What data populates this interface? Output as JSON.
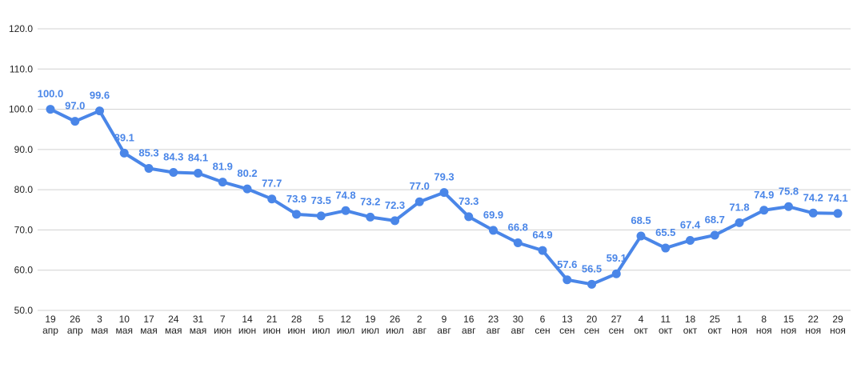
{
  "chart_data": {
    "type": "line",
    "title": "",
    "xlabel": "",
    "ylabel": "",
    "ylim": [
      50,
      120
    ],
    "yticks": [
      "50.0",
      "60.0",
      "70.0",
      "80.0",
      "90.0",
      "100.0",
      "110.0",
      "120.0"
    ],
    "grid": true,
    "legend": "none",
    "color": "#4a86e8",
    "categories": [
      [
        "19",
        "апр"
      ],
      [
        "26",
        "апр"
      ],
      [
        "3",
        "мая"
      ],
      [
        "10",
        "мая"
      ],
      [
        "17",
        "мая"
      ],
      [
        "24",
        "мая"
      ],
      [
        "31",
        "мая"
      ],
      [
        "7",
        "июн"
      ],
      [
        "14",
        "июн"
      ],
      [
        "21",
        "июн"
      ],
      [
        "28",
        "июн"
      ],
      [
        "5",
        "июл"
      ],
      [
        "12",
        "июл"
      ],
      [
        "19",
        "июл"
      ],
      [
        "26",
        "июл"
      ],
      [
        "2",
        "авг"
      ],
      [
        "9",
        "авг"
      ],
      [
        "16",
        "авг"
      ],
      [
        "23",
        "авг"
      ],
      [
        "30",
        "авг"
      ],
      [
        "6",
        "сен"
      ],
      [
        "13",
        "сен"
      ],
      [
        "20",
        "сен"
      ],
      [
        "27",
        "сен"
      ],
      [
        "4",
        "окт"
      ],
      [
        "11",
        "окт"
      ],
      [
        "18",
        "окт"
      ],
      [
        "25",
        "окт"
      ],
      [
        "1",
        "ноя"
      ],
      [
        "8",
        "ноя"
      ],
      [
        "15",
        "ноя"
      ],
      [
        "22",
        "ноя"
      ],
      [
        "29",
        "ноя"
      ]
    ],
    "values": [
      100.0,
      97.0,
      99.6,
      89.1,
      85.3,
      84.3,
      84.1,
      81.9,
      80.2,
      77.7,
      73.9,
      73.5,
      74.8,
      73.2,
      72.3,
      77.0,
      79.3,
      73.3,
      69.9,
      66.8,
      64.9,
      57.6,
      56.5,
      59.1,
      68.5,
      65.5,
      67.4,
      68.7,
      71.8,
      74.9,
      75.8,
      74.2,
      74.1
    ],
    "labels": [
      "100.0",
      "97.0",
      "99.6",
      "89.1",
      "85.3",
      "84.3",
      "84.1",
      "81.9",
      "80.2",
      "77.7",
      "73.9",
      "73.5",
      "74.8",
      "73.2",
      "72.3",
      "77.0",
      "79.3",
      "73.3",
      "69.9",
      "66.8",
      "64.9",
      "57.6",
      "56.5",
      "59.1",
      "68.5",
      "65.5",
      "67.4",
      "68.7",
      "71.8",
      "74.9",
      "75.8",
      "74.2",
      "74.1"
    ]
  }
}
